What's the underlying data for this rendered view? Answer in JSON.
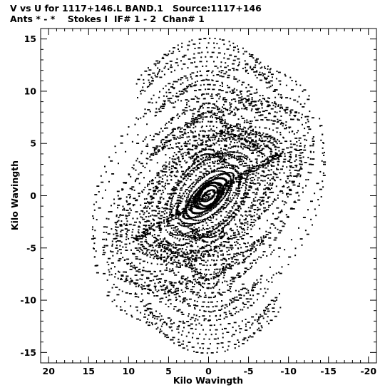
{
  "header": {
    "line1": "V vs U for 1117+146.L BAND.1   Source:1117+146",
    "line2": "Ants * - *    Stokes I  IF# 1 - 2  Chan# 1"
  },
  "chart_data": {
    "type": "scatter",
    "title": "V vs U for 1117+146.L BAND.1   Source:1117+146",
    "subtitle": "Ants * - *    Stokes I  IF# 1 - 2  Chan# 1",
    "xlabel": "Kilo Wavingth",
    "ylabel": "Kilo Wavingth",
    "xlim": [
      21,
      -21
    ],
    "ylim": [
      -16,
      16
    ],
    "x_reversed": true,
    "xticks": [
      20,
      15,
      10,
      5,
      0,
      -5,
      -10,
      -15,
      -20
    ],
    "yticks": [
      15,
      10,
      5,
      0,
      -5,
      -10,
      -15
    ],
    "grid": false,
    "legend": "none",
    "marker_color": "#000000",
    "series": [
      {
        "values": "uv-coverage tracks (symmetric, each baseline plotted at (u,v) and (-u,-v))"
      }
    ]
  }
}
